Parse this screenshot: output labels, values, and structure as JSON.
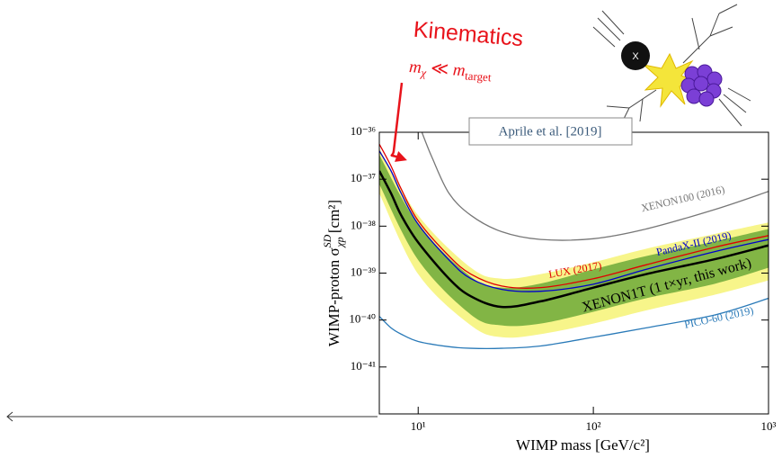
{
  "chart_data": {
    "type": "line",
    "xscale": "log",
    "yscale": "log",
    "xlabel": "WIMP mass [GeV/c²]",
    "ylabel": {
      "text": "WIMP-proton σ",
      "sup": "SD",
      "sub": "χp",
      "unit": " [cm²]"
    },
    "xlim": [
      6,
      1000
    ],
    "ylim": [
      1e-42,
      1e-36
    ],
    "xticks": [
      {
        "value": 10,
        "label": "10¹"
      },
      {
        "value": 100,
        "label": "10²"
      },
      {
        "value": 1000,
        "label": "10³"
      }
    ],
    "yticks": [
      {
        "value": 1e-36,
        "label": "10⁻³⁶"
      },
      {
        "value": 1e-37,
        "label": "10⁻³⁷"
      },
      {
        "value": 1e-38,
        "label": "10⁻³⁸"
      },
      {
        "value": 1e-39,
        "label": "10⁻³⁹"
      },
      {
        "value": 1e-40,
        "label": "10⁻⁴⁰"
      },
      {
        "value": 1e-41,
        "label": "10⁻⁴¹"
      }
    ],
    "bands": [
      {
        "color": "#f7f58a",
        "x": [
          6,
          10,
          20,
          30,
          50,
          100,
          200,
          500,
          1000
        ],
        "upper": [
          4.5e-37,
          1.7e-38,
          1.3e-39,
          7.6e-40,
          9.5e-40,
          1.7e-39,
          3.3e-39,
          6.9e-39,
          1.2e-38
        ],
        "lower": [
          5e-38,
          9.5e-40,
          7.7e-41,
          4.3e-41,
          5e-41,
          8.4e-41,
          1.6e-40,
          3.5e-40,
          7e-40
        ]
      },
      {
        "color": "#82b545",
        "x": [
          6,
          10,
          20,
          30,
          50,
          100,
          200,
          500,
          1000
        ],
        "upper": [
          3.3e-37,
          1.1e-38,
          8.3e-40,
          4.9e-40,
          6e-40,
          1.2e-39,
          2.3e-39,
          4.8e-39,
          8.7e-39
        ],
        "lower": [
          7.8e-38,
          1.9e-39,
          1.3e-40,
          7.7e-41,
          8.4e-41,
          1.5e-40,
          2.9e-40,
          6e-40,
          1.3e-39
        ]
      }
    ],
    "series": [
      {
        "name": "XENON100 (2016)",
        "color": "#777777",
        "x": [
          10.5,
          12,
          15,
          20,
          30,
          50,
          100,
          200,
          500,
          1000
        ],
        "values": [
          1e-36,
          2.9e-37,
          5e-38,
          1.7e-38,
          7.6e-39,
          5.2e-39,
          5.4e-39,
          8.7e-39,
          2.3e-38,
          5.5e-38
        ]
      },
      {
        "name": "LUX (2017)",
        "color": "#e00000",
        "x": [
          6,
          7,
          8,
          10,
          15,
          20,
          30,
          50,
          100,
          200,
          500,
          1000
        ],
        "values": [
          5.6e-37,
          1.9e-37,
          6.2e-38,
          1.3e-38,
          2.3e-39,
          9.5e-40,
          5.3e-40,
          4.9e-40,
          7.6e-40,
          1.5e-39,
          3.6e-39,
          6.3e-39
        ]
      },
      {
        "name": "PandaX-II (2019)",
        "color": "#0000cc",
        "x": [
          6,
          7,
          8,
          10,
          15,
          20,
          30,
          50,
          100,
          200,
          500,
          1000
        ],
        "values": [
          4e-37,
          1.5e-37,
          5e-38,
          1.1e-38,
          1.9e-39,
          7.6e-40,
          4.5e-40,
          4.1e-40,
          5.8e-40,
          1.2e-39,
          2.9e-39,
          5.2e-39
        ]
      },
      {
        "name": "XENON1T (1 t×yr, this work)",
        "color": "#000000",
        "x": [
          6,
          7,
          8,
          10,
          15,
          20,
          30,
          50,
          100,
          200,
          500,
          1000
        ],
        "values": [
          1.5e-37,
          5e-38,
          1.7e-38,
          4.5e-39,
          7.6e-40,
          3.2e-40,
          1.9e-40,
          2.5e-40,
          4.9e-40,
          9.5e-40,
          2e-39,
          3.9e-39
        ]
      },
      {
        "name": "PICO-60 (2019)",
        "color": "#2a7ab8",
        "x": [
          6,
          7,
          8,
          10,
          15,
          20,
          30,
          50,
          100,
          200,
          500,
          1000
        ],
        "values": [
          1.2e-40,
          6.8e-41,
          5e-41,
          3.5e-41,
          2.7e-41,
          2.5e-41,
          2.5e-41,
          2.8e-41,
          4.3e-41,
          6.8e-41,
          1.3e-40,
          2.9e-40
        ]
      }
    ],
    "citation": "Aprile et al. [2019]",
    "annotation": {
      "title": "Kinematics",
      "lhs": "m",
      "lhs_sub": "χ",
      "op": " ≪ ",
      "rhs": "m",
      "rhs_sub": "target"
    },
    "illustration_label": "X"
  }
}
